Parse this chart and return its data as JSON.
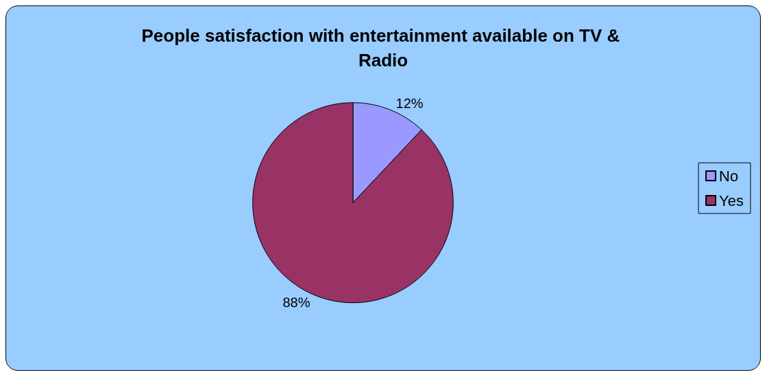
{
  "chart_data": {
    "type": "pie",
    "title": "People satisfaction with entertainment available on TV & Radio",
    "categories": [
      "No",
      "Yes"
    ],
    "values": [
      12,
      88
    ],
    "colors": [
      "#9999ff",
      "#993366"
    ],
    "value_labels": [
      "12%",
      "88%"
    ],
    "legend": "right"
  }
}
